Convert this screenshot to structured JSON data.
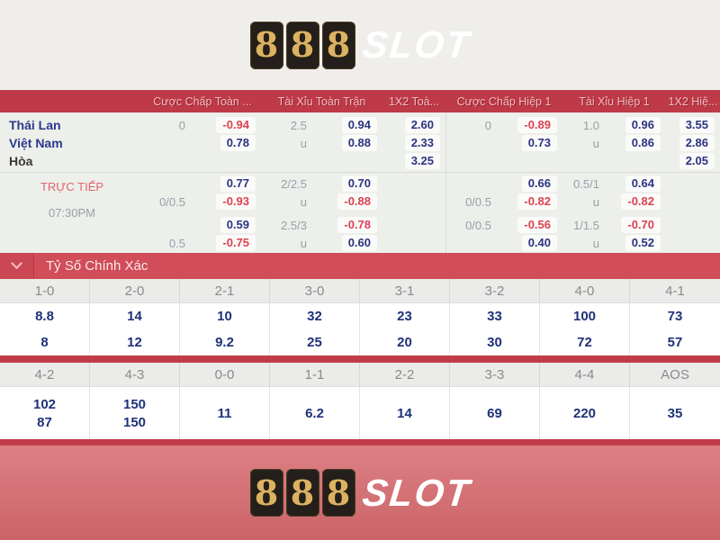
{
  "logo": {
    "digits": [
      "8",
      "8",
      "8"
    ],
    "suffix": "SLOT"
  },
  "odds_header": {
    "cols": [
      "Cược Chấp Toàn ...",
      "Tài Xỉu Toàn Trận",
      "1X2 Toà...",
      "Cược Chấp Hiệp 1",
      "Tài Xỉu Hiệp 1",
      "1X2 Hiệ..."
    ]
  },
  "match": {
    "teams": [
      {
        "name": "Thái Lan",
        "cells": [
          {
            "v": "0",
            "t": "l"
          },
          {
            "v": "-0.94",
            "t": "o"
          },
          {
            "v": "2.5",
            "t": "l"
          },
          {
            "v": "0.94",
            "t": "o"
          },
          {
            "v": "2.60",
            "t": "o"
          },
          {
            "v": "0",
            "t": "l"
          },
          {
            "v": "-0.89",
            "t": "o"
          },
          {
            "v": "1.0",
            "t": "l"
          },
          {
            "v": "0.96",
            "t": "o"
          },
          {
            "v": "3.55",
            "t": "o"
          }
        ]
      },
      {
        "name": "Việt Nam",
        "cells": [
          null,
          {
            "v": "0.78",
            "t": "o"
          },
          {
            "v": "u",
            "t": "l"
          },
          {
            "v": "0.88",
            "t": "o"
          },
          {
            "v": "2.33",
            "t": "o"
          },
          null,
          {
            "v": "0.73",
            "t": "o"
          },
          {
            "v": "u",
            "t": "l"
          },
          {
            "v": "0.86",
            "t": "o"
          },
          {
            "v": "2.86",
            "t": "o"
          }
        ]
      },
      {
        "name": "Hòa",
        "cells": [
          null,
          null,
          null,
          null,
          {
            "v": "3.25",
            "t": "o"
          },
          null,
          null,
          null,
          null,
          {
            "v": "2.05",
            "t": "o"
          }
        ]
      }
    ],
    "live": {
      "status": "TRỰC TIẾP",
      "time": "07:30PM",
      "rows": [
        [
          null,
          {
            "v": "0.77",
            "t": "o"
          },
          {
            "v": "2/2.5",
            "t": "l"
          },
          {
            "v": "0.70",
            "t": "o"
          },
          null,
          null,
          {
            "v": "0.66",
            "t": "o"
          },
          {
            "v": "0.5/1",
            "t": "l"
          },
          {
            "v": "0.64",
            "t": "o"
          },
          null
        ],
        [
          {
            "v": "0/0.5",
            "t": "l"
          },
          {
            "v": "-0.93",
            "t": "o"
          },
          {
            "v": "u",
            "t": "l"
          },
          {
            "v": "-0.88",
            "t": "o"
          },
          null,
          {
            "v": "0/0.5",
            "t": "l"
          },
          {
            "v": "-0.82",
            "t": "o"
          },
          {
            "v": "u",
            "t": "l"
          },
          {
            "v": "-0.82",
            "t": "o"
          },
          null
        ],
        [
          null,
          {
            "v": "0.59",
            "t": "o"
          },
          {
            "v": "2.5/3",
            "t": "l"
          },
          {
            "v": "-0.78",
            "t": "o"
          },
          null,
          {
            "v": "0/0.5",
            "t": "l"
          },
          {
            "v": "-0.56",
            "t": "o"
          },
          {
            "v": "1/1.5",
            "t": "l"
          },
          {
            "v": "-0.70",
            "t": "o"
          },
          null
        ],
        [
          {
            "v": "0.5",
            "t": "l"
          },
          {
            "v": "-0.75",
            "t": "o"
          },
          {
            "v": "u",
            "t": "l"
          },
          {
            "v": "0.60",
            "t": "o"
          },
          null,
          null,
          {
            "v": "0.40",
            "t": "o"
          },
          {
            "v": "u",
            "t": "l"
          },
          {
            "v": "0.52",
            "t": "o"
          },
          null
        ]
      ]
    }
  },
  "correct_score": {
    "title": "Tỷ Số Chính Xác",
    "grid1": {
      "headers": [
        "1-0",
        "2-0",
        "2-1",
        "3-0",
        "3-1",
        "3-2",
        "4-0",
        "4-1"
      ],
      "rows": [
        [
          "8.8",
          "14",
          "10",
          "32",
          "23",
          "33",
          "100",
          "73"
        ],
        [
          "8",
          "12",
          "9.2",
          "25",
          "20",
          "30",
          "72",
          "57"
        ]
      ]
    },
    "grid2": {
      "headers": [
        "4-2",
        "4-3",
        "0-0",
        "1-1",
        "2-2",
        "3-3",
        "4-4",
        "AOS"
      ],
      "cells": [
        [
          "102",
          "87"
        ],
        [
          "150",
          "150"
        ],
        [
          "11"
        ],
        [
          "6.2"
        ],
        [
          "14"
        ],
        [
          "69"
        ],
        [
          "220"
        ],
        [
          "35"
        ]
      ]
    }
  },
  "colors": {
    "accent_red": "#c23b49",
    "odds_negative": "#dc4350",
    "odds_positive": "#2b3480",
    "gold": "#dcb261"
  }
}
